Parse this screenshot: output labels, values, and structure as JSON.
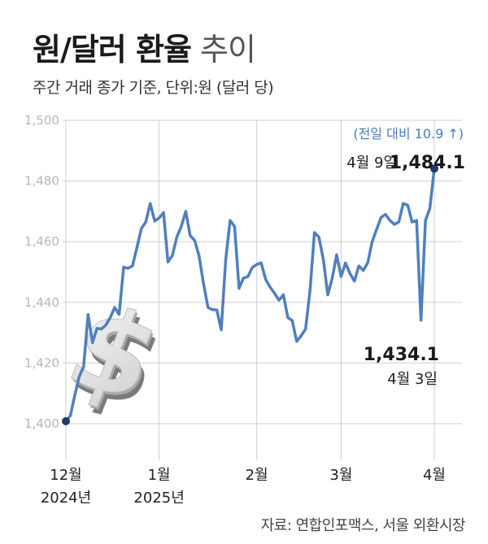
{
  "header": {
    "title_bold": "원/달러 환율",
    "title_light": "추이",
    "subtitle": "주간 거래 종가 기준, 단위:원 (달러 당)"
  },
  "source": "자료: 연합인포맥스, 서울 외환시장",
  "colors": {
    "line": "#4f7fbf",
    "grid": "#cfcfcf",
    "dot": "#1f3a66",
    "annotation": "#4a7bbd"
  },
  "icon": "dollar-sign-3d-icon",
  "annotations": {
    "high_change": "(전일 대비 10.9 ↑)",
    "high_date": "4월 9일",
    "high_value": "1,484.1",
    "low_value": "1,434.1",
    "low_date": "4월 3일"
  },
  "chart_data": {
    "type": "line",
    "title": "원/달러 환율 추이",
    "subtitle": "주간 거래 종가 기준, 단위:원 (달러 당)",
    "xlabel": "",
    "ylabel": "",
    "ylim": [
      1400,
      1500
    ],
    "yticks": [
      1400,
      1420,
      1440,
      1460,
      1480,
      1500
    ],
    "ytick_labels": [
      "1,400",
      "1,420",
      "1,440",
      "1,460",
      "1,480",
      "1,500"
    ],
    "grid": true,
    "x_labels": [
      {
        "line1": "12월",
        "line2": "2024년",
        "index": 0
      },
      {
        "line1": "1월",
        "line2": "2025년",
        "index": 21
      },
      {
        "line1": "2월",
        "line2": "",
        "index": 43
      },
      {
        "line1": "3월",
        "line2": "",
        "index": 62
      },
      {
        "line1": "4월",
        "line2": "",
        "index": 83
      }
    ],
    "values": [
      1400.8,
      1402.6,
      1409.3,
      1415.5,
      1418.8,
      1436.0,
      1426.7,
      1431.4,
      1431.2,
      1432.5,
      1435.0,
      1438.3,
      1436.0,
      1451.6,
      1451.2,
      1452.0,
      1458.0,
      1464.3,
      1466.5,
      1472.6,
      1466.8,
      1467.8,
      1469.6,
      1453.3,
      1455.5,
      1461.5,
      1465.0,
      1470.0,
      1462.0,
      1460.4,
      1455.4,
      1446.2,
      1438.3,
      1437.6,
      1437.5,
      1430.9,
      1454.0,
      1467.0,
      1465.0,
      1444.6,
      1448.0,
      1448.5,
      1451.5,
      1452.5,
      1453.0,
      1447.6,
      1445.0,
      1443.0,
      1440.7,
      1442.5,
      1435.0,
      1434.0,
      1427.1,
      1429.0,
      1431.2,
      1444.0,
      1463.0,
      1461.5,
      1454.0,
      1442.5,
      1448.0,
      1455.7,
      1448.5,
      1453.0,
      1449.5,
      1447.0,
      1452.0,
      1450.5,
      1453.0,
      1460.0,
      1464.0,
      1468.0,
      1469.0,
      1467.0,
      1465.7,
      1466.5,
      1472.6,
      1472.0,
      1466.5,
      1467.0,
      1434.1,
      1467.0,
      1471.0,
      1484.1
    ]
  }
}
